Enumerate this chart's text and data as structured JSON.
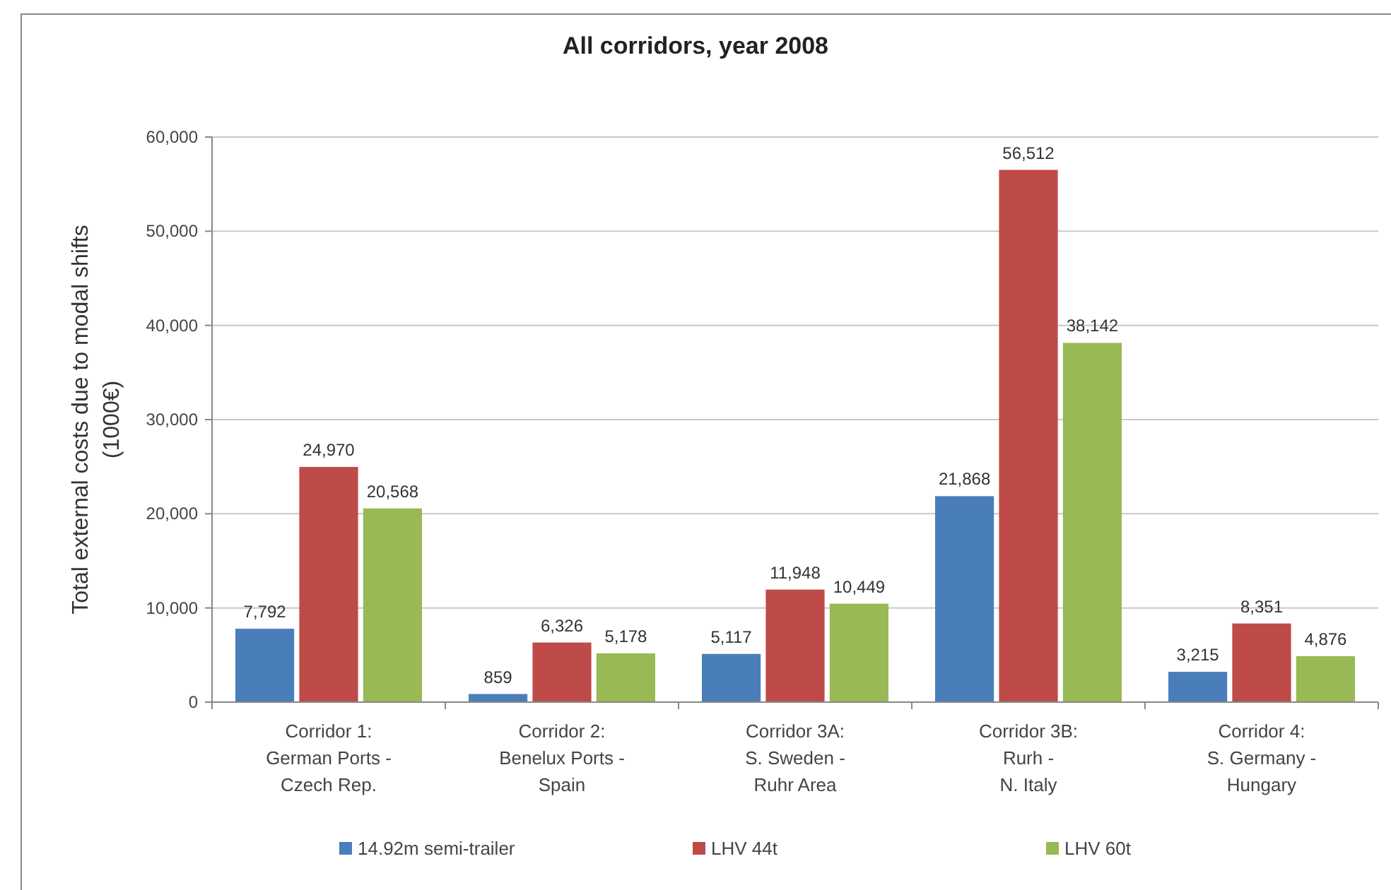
{
  "chart_data": {
    "type": "bar",
    "title": "All corridors, year 2008",
    "ylabel": "Total external costs due to modal shifts (1000€)",
    "categories": [
      "Corridor 1:\nGerman Ports -\nCzech Rep.",
      "Corridor 2:\nBenelux Ports -\nSpain",
      "Corridor 3A:\nS. Sweden -\nRuhr Area",
      "Corridor 3B:\nRurh -\nN. Italy",
      "Corridor 4:\nS. Germany -\nHungary"
    ],
    "series": [
      {
        "name": "14.92m semi-trailer",
        "color": "#4a7ebb",
        "values": [
          7792,
          859,
          5117,
          21868,
          3215
        ],
        "value_labels": [
          "7,792",
          "859",
          "5,117",
          "21,868",
          "3,215"
        ]
      },
      {
        "name": "LHV 44t",
        "color": "#be4b48",
        "values": [
          24970,
          6326,
          11948,
          56512,
          8351
        ],
        "value_labels": [
          "24,970",
          "6,326",
          "11,948",
          "56,512",
          "8,351"
        ]
      },
      {
        "name": "LHV 60t",
        "color": "#98b954",
        "values": [
          20568,
          5178,
          10449,
          38142,
          4876
        ],
        "value_labels": [
          "20,568",
          "5,178",
          "10,449",
          "38,142",
          "4,876"
        ]
      }
    ],
    "ylim": [
      0,
      60000
    ],
    "yticks": [
      {
        "value": 0,
        "label": "0"
      },
      {
        "value": 10000,
        "label": "10,000"
      },
      {
        "value": 20000,
        "label": "20,000"
      },
      {
        "value": 30000,
        "label": "30,000"
      },
      {
        "value": 40000,
        "label": "40,000"
      },
      {
        "value": 50000,
        "label": "50,000"
      },
      {
        "value": 60000,
        "label": "60,000"
      }
    ],
    "grid": "y",
    "legend": "bottom"
  }
}
